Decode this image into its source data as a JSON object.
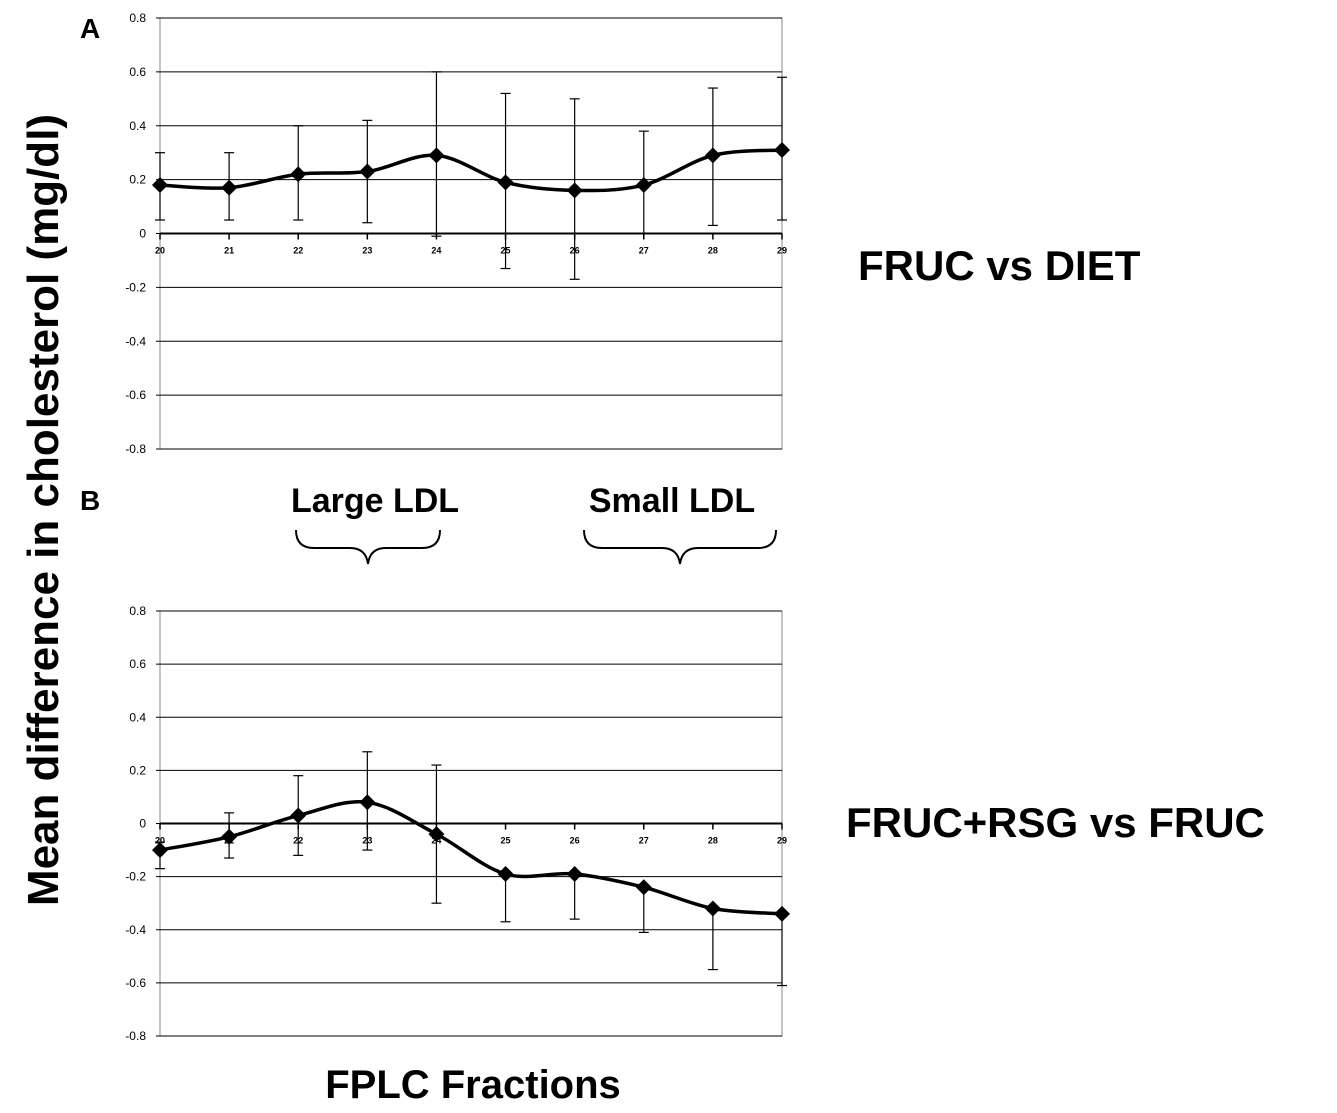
{
  "figure": {
    "ylabel": "Mean difference in cholesterol (mg/dl)",
    "xlabel": "FPLC Fractions",
    "bracket_large": "Large LDL",
    "bracket_small": "Small LDL"
  },
  "colors": {
    "line": "#000000",
    "grid": "#000000",
    "background": "#ffffff"
  },
  "chart_data": [
    {
      "type": "line",
      "panel_label": "A",
      "comparison": "FRUC vs DIET",
      "x": [
        20,
        21,
        22,
        23,
        24,
        25,
        26,
        27,
        28,
        29
      ],
      "series": [
        {
          "values": [
            0.18,
            0.17,
            0.22,
            0.23,
            0.29,
            0.19,
            0.16,
            0.18,
            0.29,
            0.31
          ],
          "error_upper": [
            0.3,
            0.3,
            0.4,
            0.42,
            0.6,
            0.52,
            0.5,
            0.38,
            0.54,
            0.58
          ],
          "error_lower": [
            0.05,
            0.05,
            0.05,
            0.04,
            -0.01,
            -0.13,
            -0.17,
            0.0,
            0.03,
            0.05
          ]
        }
      ],
      "ylim": [
        -0.8,
        0.8
      ],
      "yticks": [
        "0.8",
        "0.6",
        "0.4",
        "0.2",
        "0",
        "-0.2",
        "-0.4",
        "-0.6",
        "-0.8"
      ],
      "grid": true
    },
    {
      "type": "line",
      "panel_label": "B",
      "comparison": "FRUC+RSG vs FRUC",
      "x": [
        20,
        21,
        22,
        23,
        24,
        25,
        26,
        27,
        28,
        29
      ],
      "series": [
        {
          "values": [
            -0.1,
            -0.05,
            0.03,
            0.08,
            -0.04,
            -0.19,
            -0.19,
            -0.24,
            -0.32,
            -0.34
          ],
          "error_upper": [
            -0.07,
            0.04,
            0.18,
            0.27,
            0.22,
            -0.19,
            -0.19,
            -0.24,
            -0.32,
            -0.34
          ],
          "error_lower": [
            -0.17,
            -0.13,
            -0.12,
            -0.1,
            -0.3,
            -0.37,
            -0.36,
            -0.41,
            -0.55,
            -0.61
          ]
        }
      ],
      "ylim": [
        -0.8,
        0.8
      ],
      "yticks": [
        "0.8",
        "0.6",
        "0.4",
        "0.2",
        "0",
        "-0.2",
        "-0.4",
        "-0.6",
        "-0.8"
      ],
      "grid": true
    }
  ]
}
